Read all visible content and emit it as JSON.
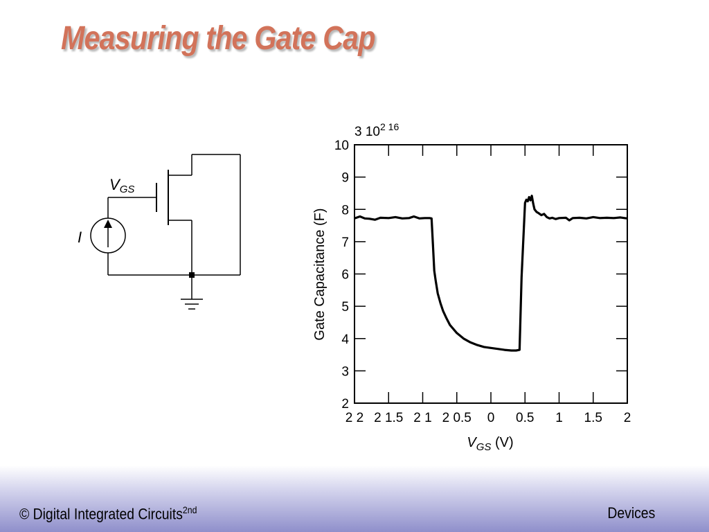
{
  "slide": {
    "title": "Measuring the Gate Cap",
    "footer_left": "© Digital Integrated Circuits",
    "footer_left_sup": "2nd",
    "footer_right": "Devices"
  },
  "circuit": {
    "label_vgs_main": "V",
    "label_vgs_sub": "GS",
    "label_current": "I"
  },
  "chart_data": {
    "type": "line",
    "title": "",
    "ylabel": "Gate Capacitance (F)",
    "xlabel_main": "V",
    "xlabel_sub": "GS",
    "xlabel_unit": " (V)",
    "y_multiplier_label": "3  10",
    "y_multiplier_sup": "2 16",
    "xlim": [
      -2,
      2
    ],
    "ylim": [
      2,
      10
    ],
    "grid": false,
    "x_ticks": [
      -2,
      -1.5,
      -1,
      -0.5,
      0,
      0.5,
      1,
      1.5,
      2
    ],
    "x_tick_labels": [
      "2 2",
      "2 1.5",
      "2 1",
      "2 0.5",
      "0",
      "0.5",
      "1",
      "1.5",
      "2"
    ],
    "y_ticks": [
      2,
      3,
      4,
      5,
      6,
      7,
      8,
      9,
      10
    ],
    "y_tick_labels": [
      "2",
      "3",
      "4",
      "5",
      "6",
      "7",
      "8",
      "9",
      "10"
    ],
    "series": [
      {
        "color": "#000000",
        "x": [
          -2.0,
          -1.92,
          -1.85,
          -1.78,
          -1.7,
          -1.62,
          -1.5,
          -1.4,
          -1.3,
          -1.2,
          -1.13,
          -1.05,
          -0.97,
          -0.9,
          -0.87,
          -0.85,
          -0.83,
          -0.81,
          -0.78,
          -0.74,
          -0.7,
          -0.65,
          -0.6,
          -0.5,
          -0.4,
          -0.3,
          -0.2,
          -0.1,
          0.0,
          0.1,
          0.2,
          0.3,
          0.37,
          0.42,
          0.45,
          0.5,
          0.52,
          0.54,
          0.56,
          0.58,
          0.6,
          0.62,
          0.64,
          0.67,
          0.7,
          0.74,
          0.78,
          0.82,
          0.86,
          0.9,
          0.95,
          1.0,
          1.1,
          1.15,
          1.2,
          1.3,
          1.4,
          1.5,
          1.6,
          1.7,
          1.8,
          1.9,
          1.96,
          2.0
        ],
        "y": [
          7.72,
          7.78,
          7.72,
          7.71,
          7.68,
          7.74,
          7.73,
          7.76,
          7.72,
          7.73,
          7.78,
          7.72,
          7.73,
          7.73,
          7.72,
          6.9,
          6.1,
          5.8,
          5.4,
          5.1,
          4.85,
          4.62,
          4.42,
          4.17,
          4.0,
          3.88,
          3.8,
          3.74,
          3.71,
          3.68,
          3.65,
          3.63,
          3.63,
          3.65,
          5.9,
          8.2,
          8.3,
          8.25,
          8.38,
          8.28,
          8.42,
          8.18,
          8.0,
          7.92,
          7.88,
          7.82,
          7.86,
          7.76,
          7.72,
          7.74,
          7.7,
          7.73,
          7.74,
          7.66,
          7.73,
          7.74,
          7.72,
          7.76,
          7.73,
          7.74,
          7.73,
          7.75,
          7.73,
          7.72
        ]
      }
    ]
  }
}
